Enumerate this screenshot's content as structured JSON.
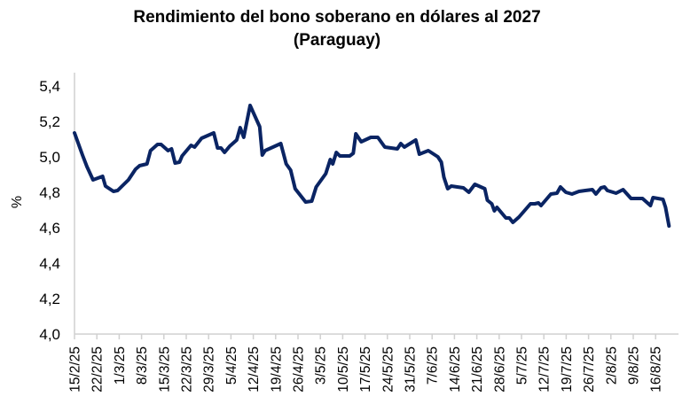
{
  "colors": {
    "line": "#0a2463",
    "axis": "#d0d0d0"
  },
  "chart_data": {
    "type": "line",
    "title": [
      "Rendimiento del bono soberano en dólares al 2027",
      "(Paraguay)"
    ],
    "xlabel": "",
    "ylabel": "%",
    "ylim": [
      4.0,
      5.4
    ],
    "yticks": [
      4.0,
      4.2,
      4.4,
      4.6,
      4.8,
      5.0,
      5.2,
      5.4
    ],
    "ytick_labels": [
      "4,0",
      "4,2",
      "4,4",
      "4,6",
      "4,8",
      "5,0",
      "5,2",
      "5,4"
    ],
    "x_unit": "days since 15/2/25",
    "xlim": [
      0,
      186.5
    ],
    "xtick_labels": [
      "15/2/25",
      "22/2/25",
      "1/3/25",
      "8/3/25",
      "15/3/25",
      "22/3/25",
      "29/3/25",
      "5/4/25",
      "12/4/25",
      "19/4/25",
      "26/4/25",
      "3/5/25",
      "10/5/25",
      "17/5/25",
      "24/5/25",
      "31/5/25",
      "7/6/25",
      "14/6/25",
      "21/6/25",
      "28/6/25",
      "5/7/25",
      "12/7/25",
      "19/7/25",
      "26/7/25",
      "2/8/25",
      "9/8/25",
      "16/8/25"
    ],
    "grid": false,
    "series": [
      {
        "name": "Rendimiento",
        "x": [
          0,
          2.5,
          3.9,
          5.8,
          8.8,
          9.7,
          12.2,
          13.5,
          16.9,
          19.1,
          20.4,
          22.7,
          23.8,
          26,
          27.1,
          29.3,
          30.4,
          31.5,
          32.9,
          33.7,
          36.5,
          37.6,
          39.8,
          43.6,
          44.8,
          45.9,
          47,
          48.6,
          50.8,
          51.9,
          53,
          55,
          58,
          58.8,
          59.7,
          64.6,
          66.3,
          67.7,
          69.1,
          72.4,
          74.3,
          75.7,
          78.7,
          80.1,
          80.9,
          82,
          83.1,
          86.2,
          87.3,
          88.1,
          89.8,
          92.8,
          95,
          97.2,
          101.1,
          102.2,
          103.3,
          106.9,
          108,
          110.8,
          113.8,
          114.9,
          115.7,
          116.9,
          118,
          121.8,
          123.5,
          125.4,
          128.5,
          129.3,
          130.7,
          131.5,
          132.3,
          135.1,
          136.2,
          137.3,
          139.2,
          142.8,
          144.2,
          145.3,
          146.1,
          149.2,
          151.1,
          152.2,
          153.9,
          155.8,
          158,
          160,
          162.2,
          163.3,
          164.9,
          166,
          166.9,
          169.6,
          171.8,
          174.3,
          177.9,
          180.4,
          181.2,
          184.3,
          185.1,
          186.2
        ],
        "y": [
          5.135,
          5.01,
          4.945,
          4.87,
          4.89,
          4.835,
          4.805,
          4.81,
          4.87,
          4.93,
          4.95,
          4.96,
          5.035,
          5.07,
          5.07,
          5.035,
          5.045,
          4.965,
          4.97,
          5.005,
          5.065,
          5.055,
          5.105,
          5.135,
          5.05,
          5.05,
          5.025,
          5.06,
          5.095,
          5.165,
          5.11,
          5.29,
          5.17,
          5.01,
          5.035,
          5.075,
          4.96,
          4.925,
          4.82,
          4.745,
          4.75,
          4.83,
          4.905,
          4.985,
          4.96,
          5.025,
          5.005,
          5.005,
          5.02,
          5.13,
          5.085,
          5.11,
          5.11,
          5.055,
          5.045,
          5.075,
          5.055,
          5.095,
          5.015,
          5.035,
          5.0,
          4.97,
          4.885,
          4.82,
          4.835,
          4.825,
          4.8,
          4.845,
          4.82,
          4.755,
          4.735,
          4.695,
          4.715,
          4.655,
          4.655,
          4.63,
          4.66,
          4.735,
          4.735,
          4.74,
          4.725,
          4.79,
          4.795,
          4.83,
          4.8,
          4.79,
          4.805,
          4.81,
          4.815,
          4.79,
          4.825,
          4.83,
          4.81,
          4.795,
          4.815,
          4.765,
          4.765,
          4.725,
          4.77,
          4.76,
          4.715,
          4.61
        ]
      }
    ]
  }
}
